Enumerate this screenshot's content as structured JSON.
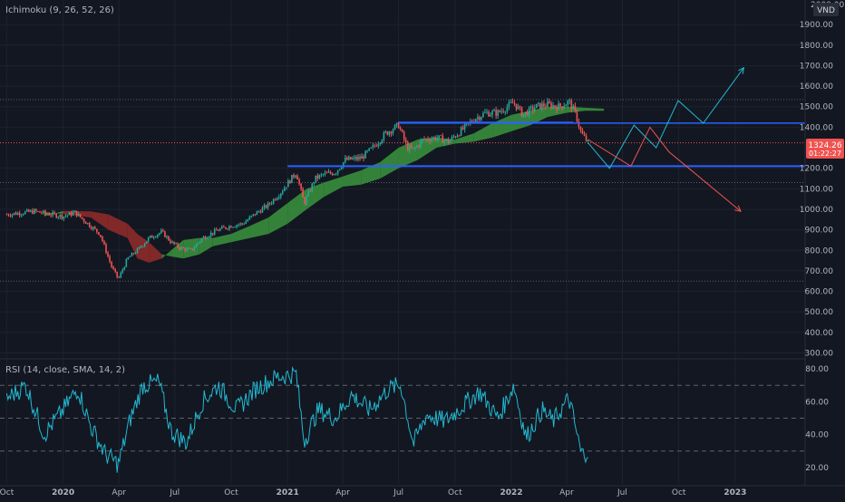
{
  "main_pane": {
    "indicator_label": "Ichimoku (9, 26, 52, 26)",
    "currency": "VND",
    "price_badge": "1324.26",
    "countdown_badge": "01:22:27",
    "top_tick_partial": "2000.00",
    "price_ticks": [
      "1900.00",
      "1800.00",
      "1700.00",
      "1600.00",
      "1500.00",
      "1400.00",
      "1200.00",
      "1100.00",
      "1000.00",
      "900.00",
      "800.00",
      "700.00",
      "600.00",
      "500.00",
      "400.00",
      "300.00"
    ]
  },
  "rsi_pane": {
    "indicator_label": "RSI (14, close, SMA, 14, 2)",
    "ticks": [
      "80.00",
      "60.00",
      "40.00",
      "20.00"
    ]
  },
  "time_axis": {
    "labels": [
      "Oct",
      "2020",
      "Apr",
      "Jul",
      "Oct",
      "2021",
      "Apr",
      "Jul",
      "Oct",
      "2022",
      "Apr",
      "Jul",
      "Oct",
      "2023"
    ]
  },
  "colors": {
    "background": "#131722",
    "text": "#b2b5be",
    "grid": "#1e222d",
    "candle_up": "#26a69a",
    "candle_down": "#ef5350",
    "kumo_bull": "#388e3c",
    "kumo_bear": "#8e2a2a",
    "rsi_line": "#22b8cf",
    "drawing_lines": "#2962ff",
    "projection_cyan": "#22b8cf",
    "projection_red": "#ef5350"
  },
  "chart_data": {
    "type": "line",
    "series": [
      {
        "values": [
          {
            "date": "2019-10-01",
            "close": 975
          },
          {
            "date": "2019-11-15",
            "close": 990
          },
          {
            "date": "2020-01-01",
            "close": 965
          },
          {
            "date": "2020-01-20",
            "close": 985
          },
          {
            "date": "2020-02-10",
            "close": 930
          },
          {
            "date": "2020-03-01",
            "close": 880
          },
          {
            "date": "2020-03-20",
            "close": 720
          },
          {
            "date": "2020-03-31",
            "close": 660
          },
          {
            "date": "2020-04-15",
            "close": 760
          },
          {
            "date": "2020-05-01",
            "close": 800
          },
          {
            "date": "2020-05-20",
            "close": 860
          },
          {
            "date": "2020-06-10",
            "close": 890
          },
          {
            "date": "2020-06-25",
            "close": 840
          },
          {
            "date": "2020-07-10",
            "close": 810
          },
          {
            "date": "2020-07-28",
            "close": 800
          },
          {
            "date": "2020-08-15",
            "close": 860
          },
          {
            "date": "2020-09-10",
            "close": 900
          },
          {
            "date": "2020-10-01",
            "close": 920
          },
          {
            "date": "2020-10-20",
            "close": 930
          },
          {
            "date": "2020-11-10",
            "close": 980
          },
          {
            "date": "2020-11-30",
            "close": 1020
          },
          {
            "date": "2020-12-20",
            "close": 1080
          },
          {
            "date": "2021-01-15",
            "close": 1180
          },
          {
            "date": "2021-01-28",
            "close": 1030
          },
          {
            "date": "2021-02-15",
            "close": 1150
          },
          {
            "date": "2021-03-01",
            "close": 1170
          },
          {
            "date": "2021-03-20",
            "close": 1180
          },
          {
            "date": "2021-04-05",
            "close": 1240
          },
          {
            "date": "2021-05-01",
            "close": 1250
          },
          {
            "date": "2021-05-20",
            "close": 1300
          },
          {
            "date": "2021-06-10",
            "close": 1370
          },
          {
            "date": "2021-07-01",
            "close": 1410
          },
          {
            "date": "2021-07-15",
            "close": 1300
          },
          {
            "date": "2021-07-25",
            "close": 1290
          },
          {
            "date": "2021-08-10",
            "close": 1340
          },
          {
            "date": "2021-09-01",
            "close": 1350
          },
          {
            "date": "2021-09-20",
            "close": 1330
          },
          {
            "date": "2021-10-10",
            "close": 1380
          },
          {
            "date": "2021-11-01",
            "close": 1440
          },
          {
            "date": "2021-11-20",
            "close": 1470
          },
          {
            "date": "2021-12-10",
            "close": 1470
          },
          {
            "date": "2022-01-05",
            "close": 1520
          },
          {
            "date": "2022-01-20",
            "close": 1460
          },
          {
            "date": "2022-02-10",
            "close": 1500
          },
          {
            "date": "2022-03-01",
            "close": 1510
          },
          {
            "date": "2022-03-20",
            "close": 1500
          },
          {
            "date": "2022-04-05",
            "close": 1525
          },
          {
            "date": "2022-04-15",
            "close": 1470
          },
          {
            "date": "2022-04-25",
            "close": 1370
          },
          {
            "date": "2022-05-06",
            "close": 1324
          }
        ]
      }
    ],
    "annotations": {
      "horizontal_levels": [
        1420,
        1210
      ],
      "trend_segment": {
        "x": [
          "2021-07-01",
          "2022-04-12"
        ],
        "y": [
          1425,
          1425
        ]
      },
      "dotted_levels": [
        1535,
        1130,
        650
      ],
      "cyan_projection": {
        "x": [
          "2022-05-06",
          "2022-06-10",
          "2022-07-20",
          "2022-08-25",
          "2022-09-30",
          "2022-11-10",
          "2023-01-15"
        ],
        "y": [
          1324,
          1200,
          1410,
          1300,
          1530,
          1420,
          1690
        ]
      },
      "red_projection": {
        "x": [
          "2022-05-06",
          "2022-07-15",
          "2022-08-15",
          "2022-09-15",
          "2023-01-10"
        ],
        "y": [
          1340,
          1210,
          1400,
          1280,
          990
        ]
      }
    },
    "ichimoku_cloud": [
      {
        "date": "2019-12-01",
        "span_a": 985,
        "span_b": 965
      },
      {
        "date": "2020-01-01",
        "span_a": 978,
        "span_b": 992
      },
      {
        "date": "2020-02-15",
        "span_a": 960,
        "span_b": 990
      },
      {
        "date": "2020-03-15",
        "span_a": 900,
        "span_b": 975
      },
      {
        "date": "2020-04-15",
        "span_a": 860,
        "span_b": 930
      },
      {
        "date": "2020-05-01",
        "span_a": 760,
        "span_b": 880
      },
      {
        "date": "2020-05-20",
        "span_a": 740,
        "span_b": 840
      },
      {
        "date": "2020-06-10",
        "span_a": 760,
        "span_b": 780
      },
      {
        "date": "2020-06-25",
        "span_a": 800,
        "span_b": 770
      },
      {
        "date": "2020-07-15",
        "span_a": 850,
        "span_b": 760
      },
      {
        "date": "2020-08-10",
        "span_a": 860,
        "span_b": 780
      },
      {
        "date": "2020-09-01",
        "span_a": 860,
        "span_b": 820
      },
      {
        "date": "2020-10-01",
        "span_a": 880,
        "span_b": 840
      },
      {
        "date": "2020-11-01",
        "span_a": 920,
        "span_b": 860
      },
      {
        "date": "2020-12-01",
        "span_a": 960,
        "span_b": 880
      },
      {
        "date": "2021-01-01",
        "span_a": 1030,
        "span_b": 930
      },
      {
        "date": "2021-02-01",
        "span_a": 1100,
        "span_b": 1000
      },
      {
        "date": "2021-03-01",
        "span_a": 1130,
        "span_b": 1060
      },
      {
        "date": "2021-04-01",
        "span_a": 1160,
        "span_b": 1110
      },
      {
        "date": "2021-05-01",
        "span_a": 1190,
        "span_b": 1120
      },
      {
        "date": "2021-06-01",
        "span_a": 1230,
        "span_b": 1150
      },
      {
        "date": "2021-07-01",
        "span_a": 1300,
        "span_b": 1200
      },
      {
        "date": "2021-08-01",
        "span_a": 1340,
        "span_b": 1240
      },
      {
        "date": "2021-09-01",
        "span_a": 1350,
        "span_b": 1300
      },
      {
        "date": "2021-10-01",
        "span_a": 1340,
        "span_b": 1320
      },
      {
        "date": "2021-11-01",
        "span_a": 1370,
        "span_b": 1330
      },
      {
        "date": "2021-12-01",
        "span_a": 1420,
        "span_b": 1350
      },
      {
        "date": "2022-01-01",
        "span_a": 1460,
        "span_b": 1380
      },
      {
        "date": "2022-02-01",
        "span_a": 1480,
        "span_b": 1410
      },
      {
        "date": "2022-03-01",
        "span_a": 1500,
        "span_b": 1450
      },
      {
        "date": "2022-04-01",
        "span_a": 1500,
        "span_b": 1470
      },
      {
        "date": "2022-05-01",
        "span_a": 1495,
        "span_b": 1480
      },
      {
        "date": "2022-06-01",
        "span_a": 1490,
        "span_b": 1480
      }
    ],
    "rsi_series": [
      {
        "date": "2019-10-01",
        "rsi": 62
      },
      {
        "date": "2019-11-01",
        "rsi": 70
      },
      {
        "date": "2019-12-01",
        "rsi": 40
      },
      {
        "date": "2020-01-01",
        "rsi": 55
      },
      {
        "date": "2020-01-25",
        "rsi": 68
      },
      {
        "date": "2020-02-15",
        "rsi": 45
      },
      {
        "date": "2020-03-10",
        "rsi": 28
      },
      {
        "date": "2020-03-31",
        "rsi": 22
      },
      {
        "date": "2020-04-20",
        "rsi": 50
      },
      {
        "date": "2020-05-10",
        "rsi": 70
      },
      {
        "date": "2020-06-05",
        "rsi": 72
      },
      {
        "date": "2020-06-25",
        "rsi": 42
      },
      {
        "date": "2020-07-20",
        "rsi": 35
      },
      {
        "date": "2020-08-15",
        "rsi": 60
      },
      {
        "date": "2020-09-10",
        "rsi": 70
      },
      {
        "date": "2020-10-10",
        "rsi": 55
      },
      {
        "date": "2020-11-10",
        "rsi": 68
      },
      {
        "date": "2020-12-15",
        "rsi": 75
      },
      {
        "date": "2021-01-15",
        "rsi": 77
      },
      {
        "date": "2021-01-28",
        "rsi": 36
      },
      {
        "date": "2021-02-20",
        "rsi": 55
      },
      {
        "date": "2021-03-20",
        "rsi": 50
      },
      {
        "date": "2021-04-15",
        "rsi": 64
      },
      {
        "date": "2021-05-15",
        "rsi": 55
      },
      {
        "date": "2021-06-15",
        "rsi": 68
      },
      {
        "date": "2021-07-05",
        "rsi": 70
      },
      {
        "date": "2021-07-25",
        "rsi": 34
      },
      {
        "date": "2021-08-15",
        "rsi": 52
      },
      {
        "date": "2021-09-15",
        "rsi": 48
      },
      {
        "date": "2021-10-15",
        "rsi": 58
      },
      {
        "date": "2021-11-10",
        "rsi": 66
      },
      {
        "date": "2021-12-10",
        "rsi": 50
      },
      {
        "date": "2022-01-05",
        "rsi": 70
      },
      {
        "date": "2022-01-25",
        "rsi": 38
      },
      {
        "date": "2022-02-20",
        "rsi": 55
      },
      {
        "date": "2022-03-10",
        "rsi": 48
      },
      {
        "date": "2022-04-05",
        "rsi": 62
      },
      {
        "date": "2022-04-25",
        "rsi": 28
      },
      {
        "date": "2022-05-06",
        "rsi": 30
      }
    ],
    "ylim": [
      280,
      2020
    ],
    "rsi_ylim": [
      10,
      85
    ],
    "xlim": [
      "2019-09-20",
      "2023-04-25"
    ],
    "grid": true,
    "y_axis_position": "right"
  }
}
